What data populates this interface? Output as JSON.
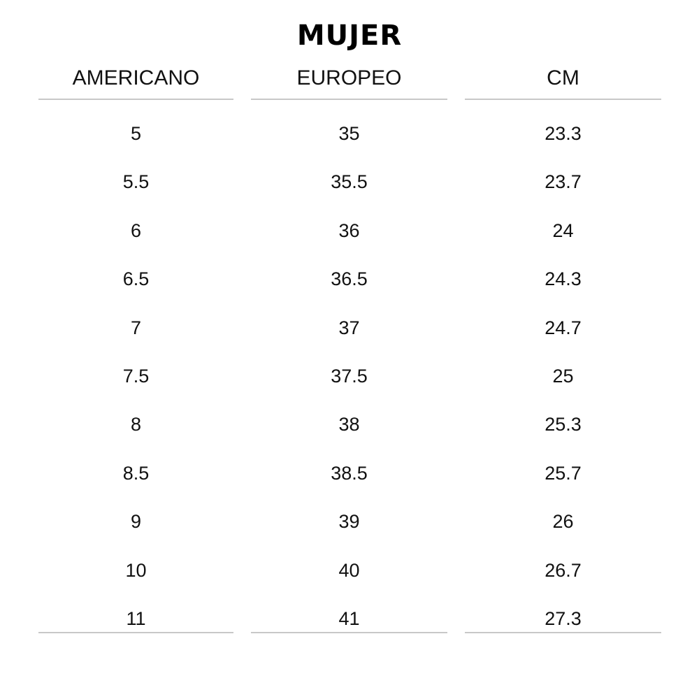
{
  "title": "MUJER",
  "columns": [
    "AMERICANO",
    "EUROPEO",
    "CM"
  ],
  "rows": [
    [
      "5",
      "35",
      "23.3"
    ],
    [
      "5.5",
      "35.5",
      "23.7"
    ],
    [
      "6",
      "36",
      "24"
    ],
    [
      "6.5",
      "36.5",
      "24.3"
    ],
    [
      "7",
      "37",
      "24.7"
    ],
    [
      "7.5",
      "37.5",
      "25"
    ],
    [
      "8",
      "38",
      "25.3"
    ],
    [
      "8.5",
      "38.5",
      "25.7"
    ],
    [
      "9",
      "39",
      "26"
    ],
    [
      "10",
      "40",
      "26.7"
    ],
    [
      "11",
      "41",
      "27.3"
    ]
  ]
}
